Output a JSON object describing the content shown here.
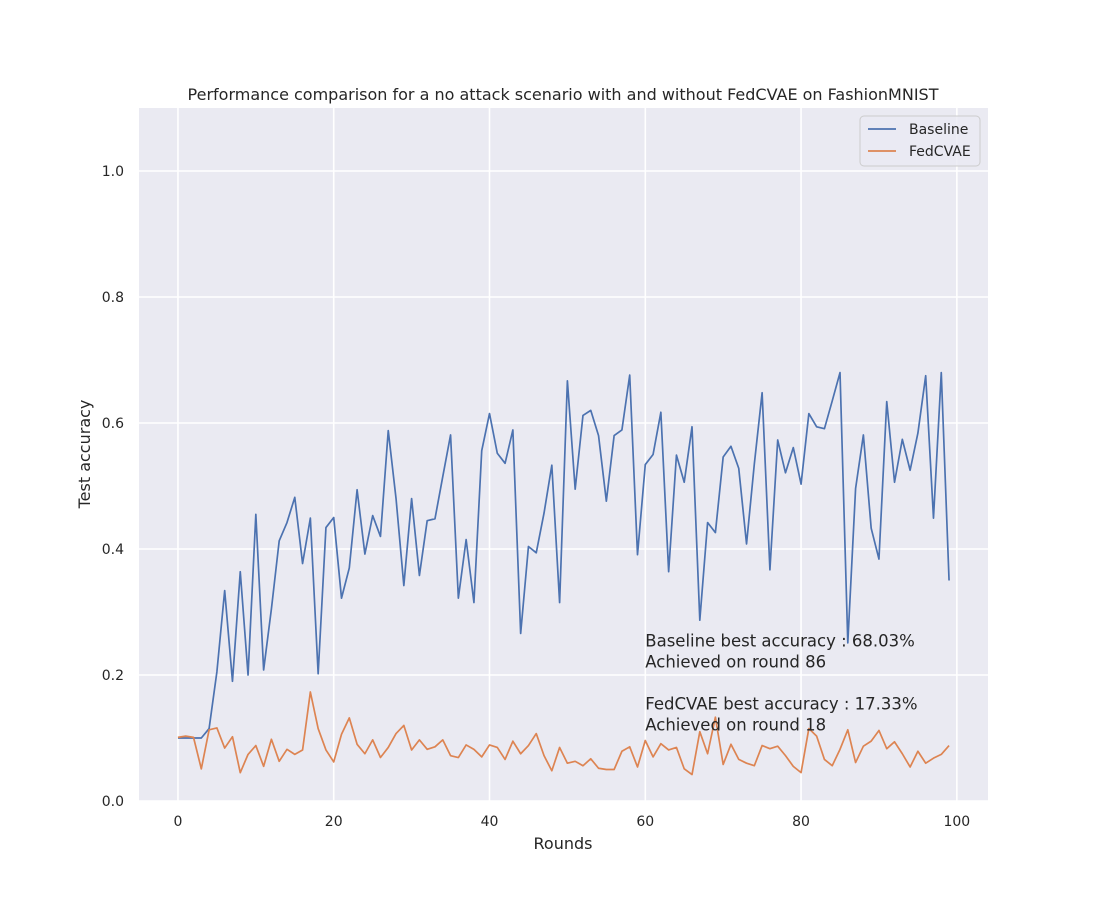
{
  "chart_data": {
    "type": "line",
    "title": "Performance comparison for a no attack scenario with and without FedCVAE on FashionMNIST",
    "xlabel": "Rounds",
    "ylabel": "Test accuracy",
    "xlim": [
      -5,
      104
    ],
    "ylim": [
      0,
      1.1
    ],
    "xticks": [
      0,
      20,
      40,
      60,
      80,
      100
    ],
    "yticks": [
      0.0,
      0.2,
      0.4,
      0.6,
      0.8,
      1.0
    ],
    "xtick_labels": [
      "0",
      "20",
      "40",
      "60",
      "80",
      "100"
    ],
    "ytick_labels": [
      "0.0",
      "0.2",
      "0.4",
      "0.6",
      "0.8",
      "1.0"
    ],
    "grid": true,
    "legend_position": "top-right",
    "series": [
      {
        "name": "Baseline",
        "color": "#4c72b0",
        "values": [
          0.1,
          0.1,
          0.1,
          0.1,
          0.115,
          0.205,
          0.334,
          0.19,
          0.364,
          0.2,
          0.455,
          0.208,
          0.305,
          0.413,
          0.442,
          0.482,
          0.377,
          0.449,
          0.202,
          0.434,
          0.45,
          0.322,
          0.37,
          0.494,
          0.392,
          0.453,
          0.42,
          0.588,
          0.48,
          0.342,
          0.48,
          0.358,
          0.445,
          0.448,
          0.515,
          0.581,
          0.322,
          0.415,
          0.315,
          0.556,
          0.615,
          0.552,
          0.536,
          0.589,
          0.266,
          0.404,
          0.394,
          0.457,
          0.533,
          0.315,
          0.667,
          0.495,
          0.612,
          0.62,
          0.58,
          0.476,
          0.58,
          0.589,
          0.676,
          0.391,
          0.534,
          0.55,
          0.617,
          0.364,
          0.549,
          0.506,
          0.594,
          0.287,
          0.442,
          0.426,
          0.546,
          0.563,
          0.528,
          0.408,
          0.535,
          0.648,
          0.367,
          0.573,
          0.521,
          0.561,
          0.503,
          0.615,
          0.594,
          0.591,
          0.635,
          0.68,
          0.251,
          0.496,
          0.581,
          0.433,
          0.384,
          0.634,
          0.506,
          0.574,
          0.525,
          0.584,
          0.675,
          0.449,
          0.68,
          0.35
        ]
      },
      {
        "name": "FedCVAE",
        "color": "#dd8452",
        "values": [
          0.101,
          0.103,
          0.101,
          0.051,
          0.113,
          0.116,
          0.084,
          0.102,
          0.045,
          0.074,
          0.088,
          0.055,
          0.098,
          0.063,
          0.082,
          0.074,
          0.081,
          0.173,
          0.115,
          0.081,
          0.062,
          0.106,
          0.132,
          0.09,
          0.075,
          0.097,
          0.069,
          0.085,
          0.107,
          0.12,
          0.081,
          0.097,
          0.082,
          0.086,
          0.097,
          0.072,
          0.069,
          0.089,
          0.082,
          0.07,
          0.089,
          0.085,
          0.066,
          0.095,
          0.075,
          0.088,
          0.107,
          0.072,
          0.048,
          0.085,
          0.06,
          0.063,
          0.056,
          0.067,
          0.052,
          0.05,
          0.05,
          0.079,
          0.086,
          0.054,
          0.096,
          0.07,
          0.091,
          0.081,
          0.085,
          0.051,
          0.042,
          0.11,
          0.075,
          0.133,
          0.058,
          0.09,
          0.066,
          0.06,
          0.056,
          0.088,
          0.083,
          0.087,
          0.072,
          0.055,
          0.045,
          0.115,
          0.103,
          0.066,
          0.056,
          0.082,
          0.113,
          0.061,
          0.087,
          0.095,
          0.112,
          0.083,
          0.094,
          0.075,
          0.054,
          0.079,
          0.06,
          0.068,
          0.074,
          0.088
        ]
      }
    ],
    "annotations": [
      {
        "line1": "Baseline best accuracy : 68.03%",
        "line2": "Achieved on round 86",
        "x": 60,
        "y": 0.245
      },
      {
        "line1": "FedCVAE best accuracy : 17.33%",
        "line2": "Achieved on round 18",
        "x": 60,
        "y": 0.145
      }
    ]
  }
}
